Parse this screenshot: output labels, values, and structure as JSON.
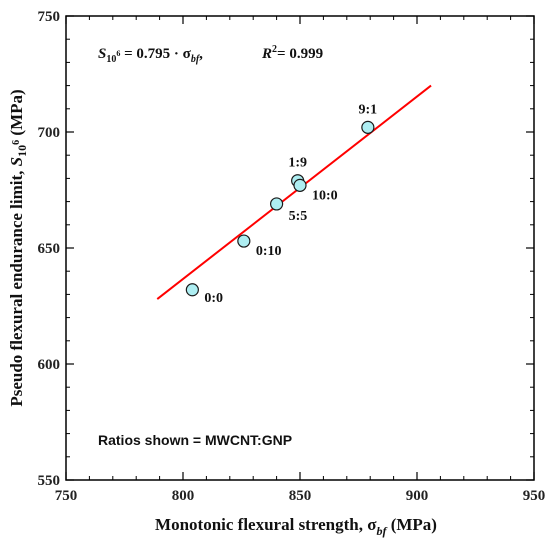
{
  "chart_data": {
    "type": "scatter",
    "xlabel": "Monotonic flexural strength, σbf (MPa)",
    "ylabel": "Pseudo flexural endurance limit, S10⁶ (MPa)",
    "xlim": [
      750,
      950
    ],
    "ylim": [
      550,
      750
    ],
    "xticks": [
      750,
      800,
      850,
      900,
      950
    ],
    "yticks": [
      550,
      600,
      650,
      700,
      750
    ],
    "marker_color": "#aeeef2",
    "line_color": "#ff0000",
    "points": [
      {
        "label": "0:0",
        "x": 804,
        "y": 632
      },
      {
        "label": "0:10",
        "x": 826,
        "y": 653
      },
      {
        "label": "5:5",
        "x": 840,
        "y": 669
      },
      {
        "label": "1:9",
        "x": 849,
        "y": 679
      },
      {
        "label": "10:0",
        "x": 850,
        "y": 677
      },
      {
        "label": "9:1",
        "x": 879,
        "y": 702
      }
    ],
    "fit_line": {
      "x": [
        789,
        906
      ],
      "y": [
        628,
        720
      ]
    },
    "equation": "S10⁶ = 0.795 · σbf,",
    "r_squared": "R² = 0.999",
    "note": "Ratios shown = MWCNT:GNP"
  }
}
